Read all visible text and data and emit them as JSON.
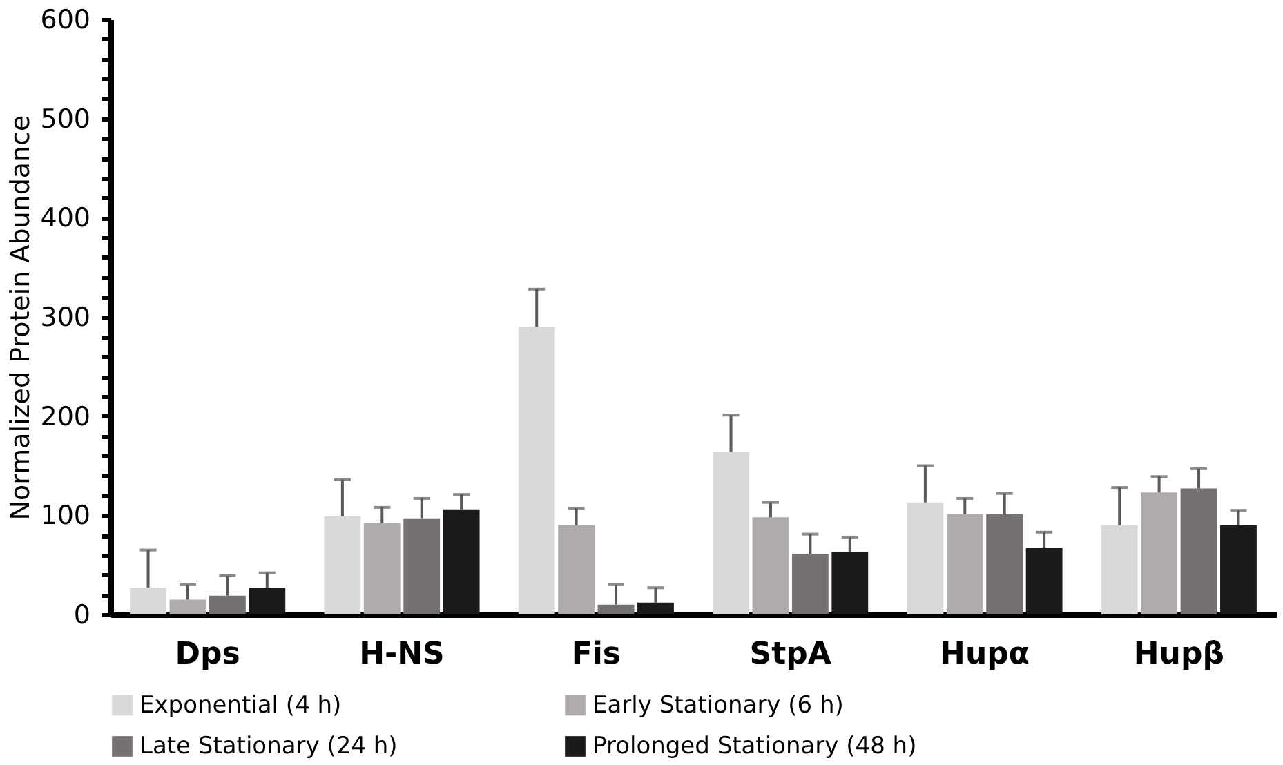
{
  "chart_data": {
    "type": "bar",
    "ylabel": "Normalized Protein Abundance",
    "categories": [
      "Dps",
      "H-NS",
      "Fis",
      "StpA",
      "Hupα",
      "Hupβ"
    ],
    "ylim": [
      0,
      600
    ],
    "yticks": [
      0,
      {
        "value": 20,
        "label": null
      },
      {
        "value": 40,
        "label": null
      },
      {
        "value": 60,
        "label": null
      },
      {
        "value": 80,
        "label": null
      },
      100,
      {
        "value": 120,
        "label": null
      },
      {
        "value": 140,
        "label": null
      },
      {
        "value": 160,
        "label": null
      },
      {
        "value": 180,
        "label": null
      },
      200,
      {
        "value": 220,
        "label": null
      },
      {
        "value": 240,
        "label": null
      },
      {
        "value": 260,
        "label": null
      },
      {
        "value": 280,
        "label": null
      },
      300,
      {
        "value": 320,
        "label": null
      },
      {
        "value": 340,
        "label": null
      },
      {
        "value": 360,
        "label": null
      },
      {
        "value": 380,
        "label": null
      },
      400,
      {
        "value": 420,
        "label": null
      },
      {
        "value": 440,
        "label": null
      },
      {
        "value": 460,
        "label": null
      },
      {
        "value": 480,
        "label": null
      },
      500,
      {
        "value": 520,
        "label": null
      },
      {
        "value": 540,
        "label": null
      },
      {
        "value": 560,
        "label": null
      },
      {
        "value": 580,
        "label": null
      },
      600
    ],
    "grid": false,
    "legend": "bottom",
    "series": [
      {
        "name": "Exponential (4 h)",
        "color": "#d9d9d9",
        "values": [
          27,
          99,
          290,
          164,
          113,
          90
        ],
        "errors": [
          [
            27,
            65
          ],
          [
            99,
            136
          ],
          [
            290,
            328
          ],
          [
            164,
            201
          ],
          [
            113,
            150
          ],
          [
            90,
            128
          ]
        ]
      },
      {
        "name": "Early Stationary (6 h)",
        "color": "#afabab",
        "values": [
          15,
          92,
          90,
          98,
          101,
          123
        ],
        "errors": [
          [
            15,
            30
          ],
          [
            92,
            108
          ],
          [
            90,
            107
          ],
          [
            98,
            113
          ],
          [
            101,
            117
          ],
          [
            123,
            139
          ]
        ]
      },
      {
        "name": "Late Stationary (24 h)",
        "color": "#767171",
        "values": [
          19,
          97,
          10,
          61,
          101,
          127
        ],
        "errors": [
          [
            19,
            39
          ],
          [
            97,
            117
          ],
          [
            10,
            30
          ],
          [
            61,
            81
          ],
          [
            101,
            122
          ],
          [
            127,
            147
          ]
        ]
      },
      {
        "name": "Prolonged Stationary (48 h)",
        "color": "#1a1a1a",
        "values": [
          27,
          106,
          12,
          63,
          67,
          90
        ],
        "errors": [
          [
            27,
            42
          ],
          [
            106,
            121
          ],
          [
            12,
            27
          ],
          [
            63,
            78
          ],
          [
            67,
            83
          ],
          [
            90,
            105
          ]
        ]
      }
    ]
  }
}
